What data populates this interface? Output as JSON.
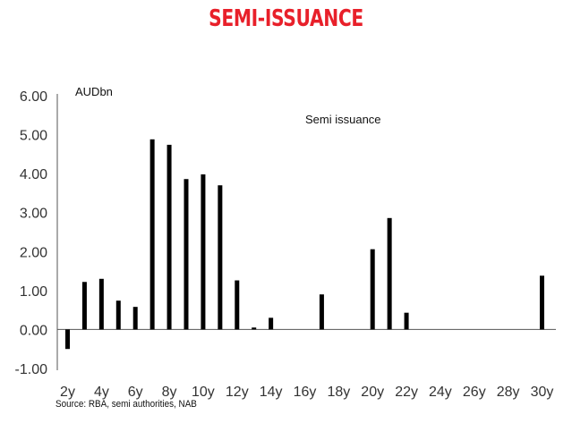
{
  "title": "SEMI-ISSUANCE",
  "title_color": "#e8202a",
  "source": "Source: RBA, semi authorities, NAB",
  "chart_data": {
    "type": "bar",
    "unit_label": "AUDbn",
    "series_name": "Semi issuance",
    "bar_color": "#000000",
    "ylim": [
      -1.0,
      6.0
    ],
    "yticks": [
      "6.00",
      "5.00",
      "4.00",
      "3.00",
      "2.00",
      "1.00",
      "0.00",
      "-1.00"
    ],
    "xtick_labels": [
      "2y",
      "4y",
      "6y",
      "8y",
      "10y",
      "12y",
      "14y",
      "16y",
      "18y",
      "20y",
      "22y",
      "24y",
      "26y",
      "28y",
      "30y"
    ],
    "categories": [
      "2y",
      "3y",
      "4y",
      "5y",
      "6y",
      "7y",
      "8y",
      "9y",
      "10y",
      "11y",
      "12y",
      "13y",
      "14y",
      "15y",
      "16y",
      "17y",
      "18y",
      "19y",
      "20y",
      "21y",
      "22y",
      "23y",
      "24y",
      "25y",
      "26y",
      "27y",
      "28y",
      "29y",
      "30y"
    ],
    "values": [
      -0.5,
      1.22,
      1.3,
      0.74,
      0.58,
      4.88,
      4.74,
      3.86,
      3.98,
      3.7,
      1.26,
      0.05,
      0.3,
      0,
      0,
      0.9,
      0,
      0,
      2.06,
      2.86,
      0.43,
      0,
      0,
      0,
      0,
      0,
      0,
      0,
      1.38
    ],
    "grid": false
  }
}
